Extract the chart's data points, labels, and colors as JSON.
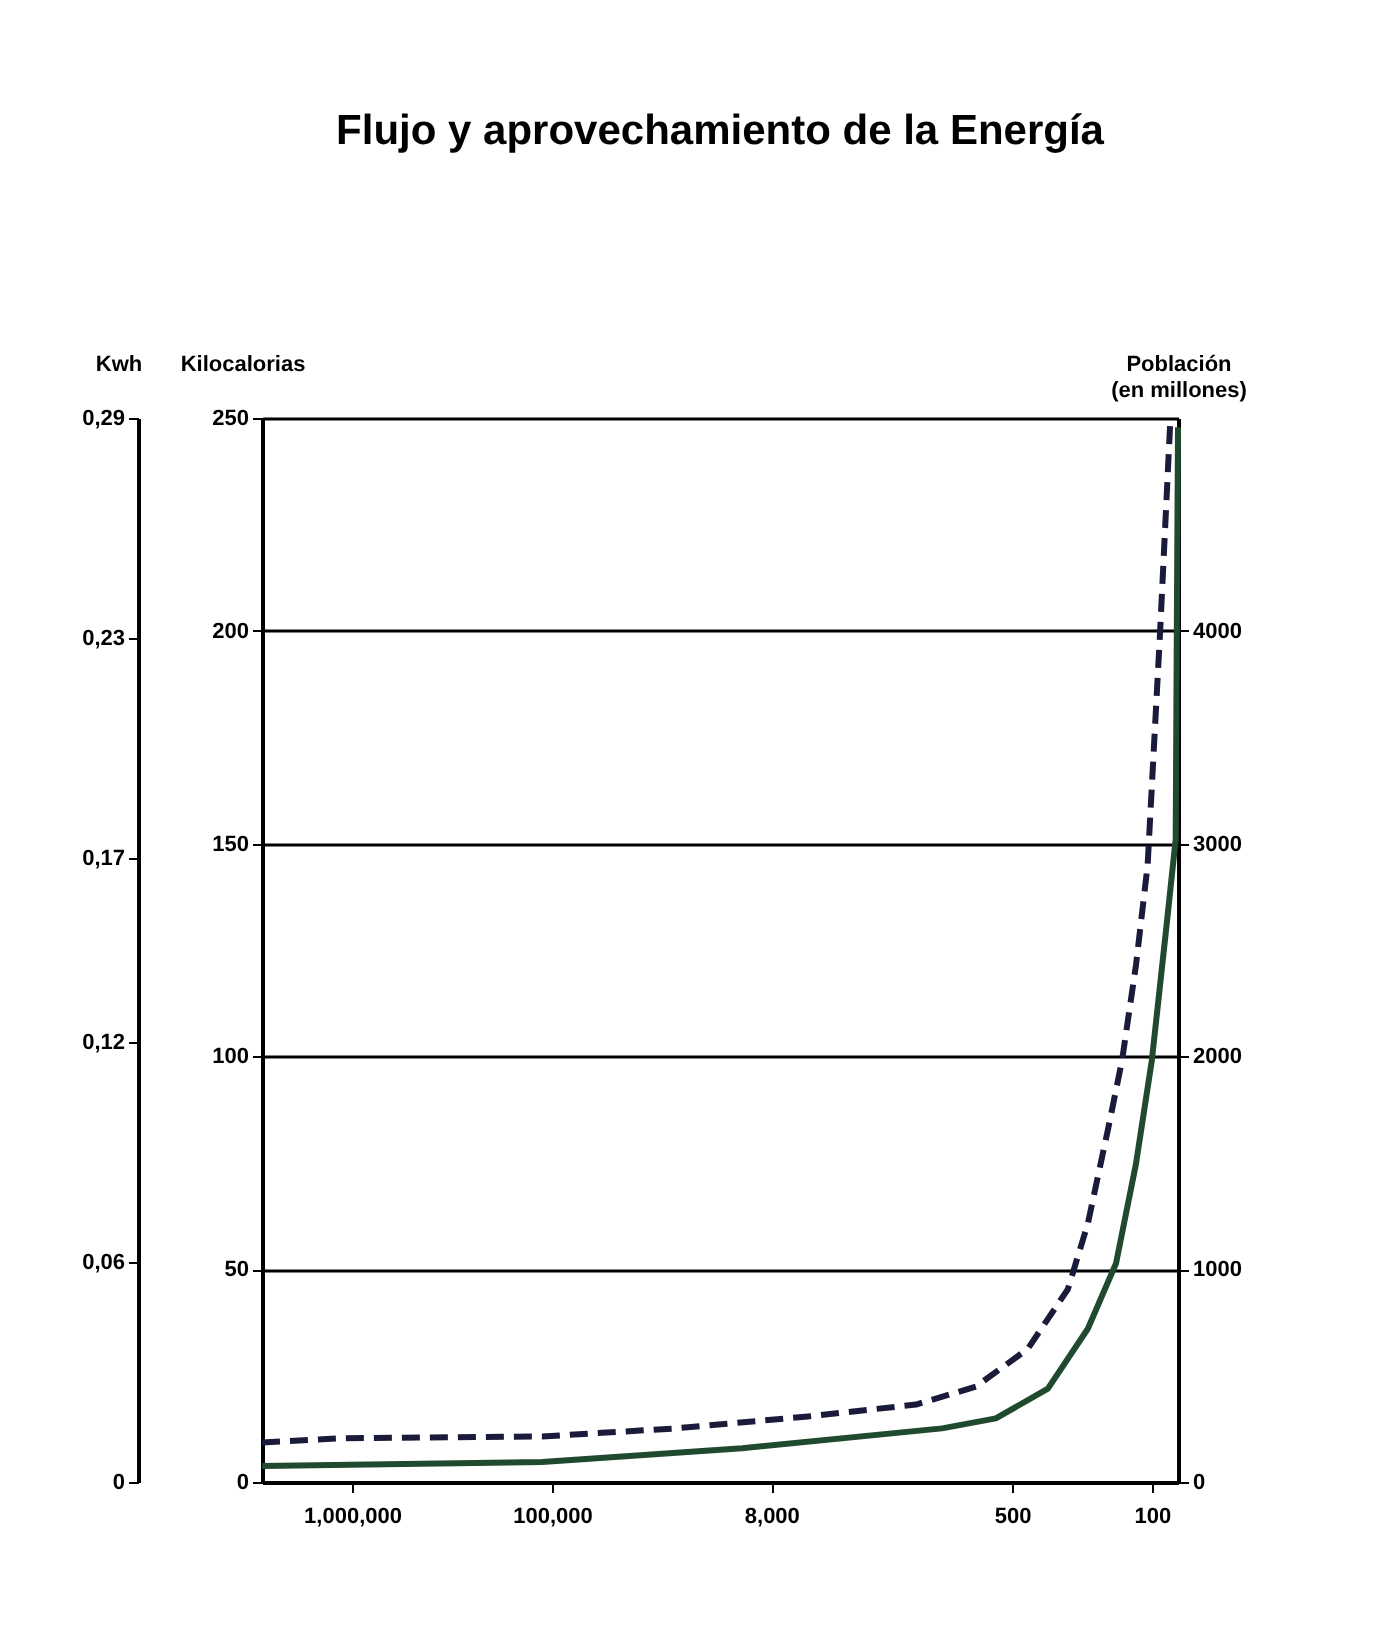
{
  "chart_data": {
    "type": "line",
    "title": "Flujo y aprovechamiento de la Energía",
    "ylabel": "Kilocalorias",
    "y2label": "Población\n(en millones)",
    "y3label": "Kwh",
    "log": "x",
    "xlim": [
      2820000,
      74
    ],
    "xticks": [
      {
        "value": 1000000,
        "label": "1,000,000"
      },
      {
        "value": 100000,
        "label": "100,000"
      },
      {
        "value": 8000,
        "label": "8,000"
      },
      {
        "value": 500,
        "label": "500"
      },
      {
        "value": 100,
        "label": "100"
      }
    ],
    "ylim": [
      0,
      250
    ],
    "yticks": [
      0,
      50,
      100,
      150,
      200,
      250
    ],
    "y2lim": [
      0,
      5000
    ],
    "y2ticks": [
      0,
      1000,
      2000,
      3000,
      4000
    ],
    "y3lim": [
      0,
      0.29
    ],
    "y3ticks": [
      0,
      {
        "value": 0.06,
        "label": "0,06"
      },
      {
        "value": 0.12,
        "label": "0,12"
      },
      {
        "value": 0.17,
        "label": "0,17"
      },
      {
        "value": 0.23,
        "label": "0,23"
      },
      {
        "value": 0.29,
        "label": "0,29"
      }
    ],
    "grid": "y",
    "series": [
      {
        "axis": "y",
        "color": "#1a1a3a",
        "line_style": "dashed",
        "x": [
          2820000,
          1120000,
          112000,
          24000,
          5250,
          1510,
          759,
          417,
          263,
          209,
          166,
          141,
          120,
          105,
          91,
          81
        ],
        "values": [
          9.3,
          10.3,
          10.7,
          12.6,
          15.4,
          18.2,
          22.4,
          31.3,
          45.3,
          60.7,
          82.7,
          99,
          121.5,
          144.9,
          199.5,
          248.6
        ]
      },
      {
        "axis": "y2",
        "color": "#1f4a2e",
        "line_style": "solid",
        "x": [
          2820000,
          112000,
          11200,
          1120,
          603,
          331,
          209,
          151,
          120,
          100,
          85,
          76,
          75,
          74
        ],
        "values": [
          75,
          94,
          159,
          252,
          299,
          439,
          720,
          1028,
          1496,
          1982,
          2590,
          3020,
          4021,
          4956
        ]
      }
    ]
  }
}
